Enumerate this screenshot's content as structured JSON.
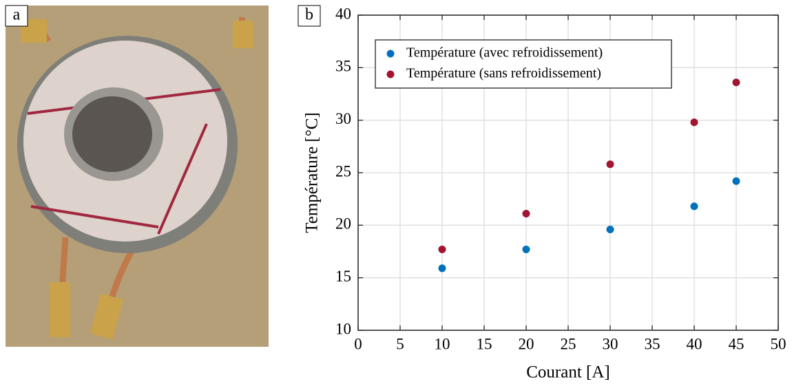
{
  "panel_a": {
    "label": "a"
  },
  "chart_data": {
    "type": "scatter",
    "panel_label": "b",
    "x_label": "Courant [A]",
    "y_label": "Température [°C]",
    "x": [
      10,
      20,
      30,
      40,
      45
    ],
    "series": [
      {
        "name": "Température (avec refroidissement)",
        "color": "#0072bd",
        "values": [
          15.9,
          17.7,
          19.6,
          21.8,
          24.2
        ]
      },
      {
        "name": "Température (sans refroidissement)",
        "color": "#a2142f",
        "values": [
          17.7,
          21.1,
          25.8,
          29.8,
          33.6
        ]
      }
    ],
    "xlim": [
      0,
      50
    ],
    "xticks": [
      0,
      5,
      10,
      15,
      20,
      25,
      30,
      35,
      40,
      45,
      50
    ],
    "ylim": [
      10,
      40
    ],
    "yticks": [
      10,
      15,
      20,
      25,
      30,
      35,
      40
    ],
    "grid": true,
    "legend": "upper left"
  }
}
